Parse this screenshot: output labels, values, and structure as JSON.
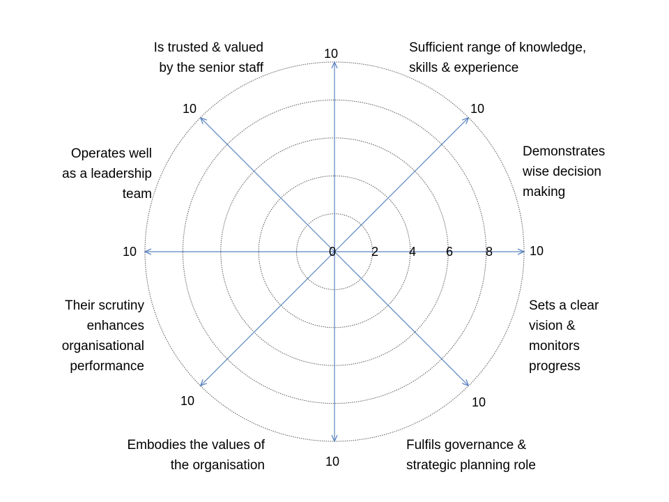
{
  "wheel": {
    "center_label": "0",
    "scale_ticks": [
      "2",
      "4",
      "6",
      "8"
    ],
    "axis_max": "10",
    "spoke_color": "#5b84c0",
    "ring_color": "#555555",
    "axes": [
      {
        "id": "top",
        "lines": []
      },
      {
        "id": "top-right",
        "lines": [
          "Sufficient range of knowledge,",
          "skills & experience"
        ]
      },
      {
        "id": "right-upper",
        "lines": [
          "Demonstrates",
          "wise decision",
          "making"
        ]
      },
      {
        "id": "right-lower",
        "lines": [
          "Sets a clear",
          "vision &",
          "monitors",
          "progress"
        ]
      },
      {
        "id": "bottom-right",
        "lines": [
          "Fulfils governance &",
          "strategic planning  role"
        ]
      },
      {
        "id": "bottom-left",
        "lines": [
          "Embodies the values of",
          "the organisation"
        ]
      },
      {
        "id": "left-lower",
        "lines": [
          "Their scrutiny",
          "enhances",
          "organisational",
          "performance"
        ]
      },
      {
        "id": "left-upper",
        "lines": [
          "Operates well",
          "as a leadership",
          "team"
        ]
      },
      {
        "id": "top-left",
        "lines": [
          "Is trusted & valued",
          "by the senior staff"
        ]
      }
    ]
  }
}
